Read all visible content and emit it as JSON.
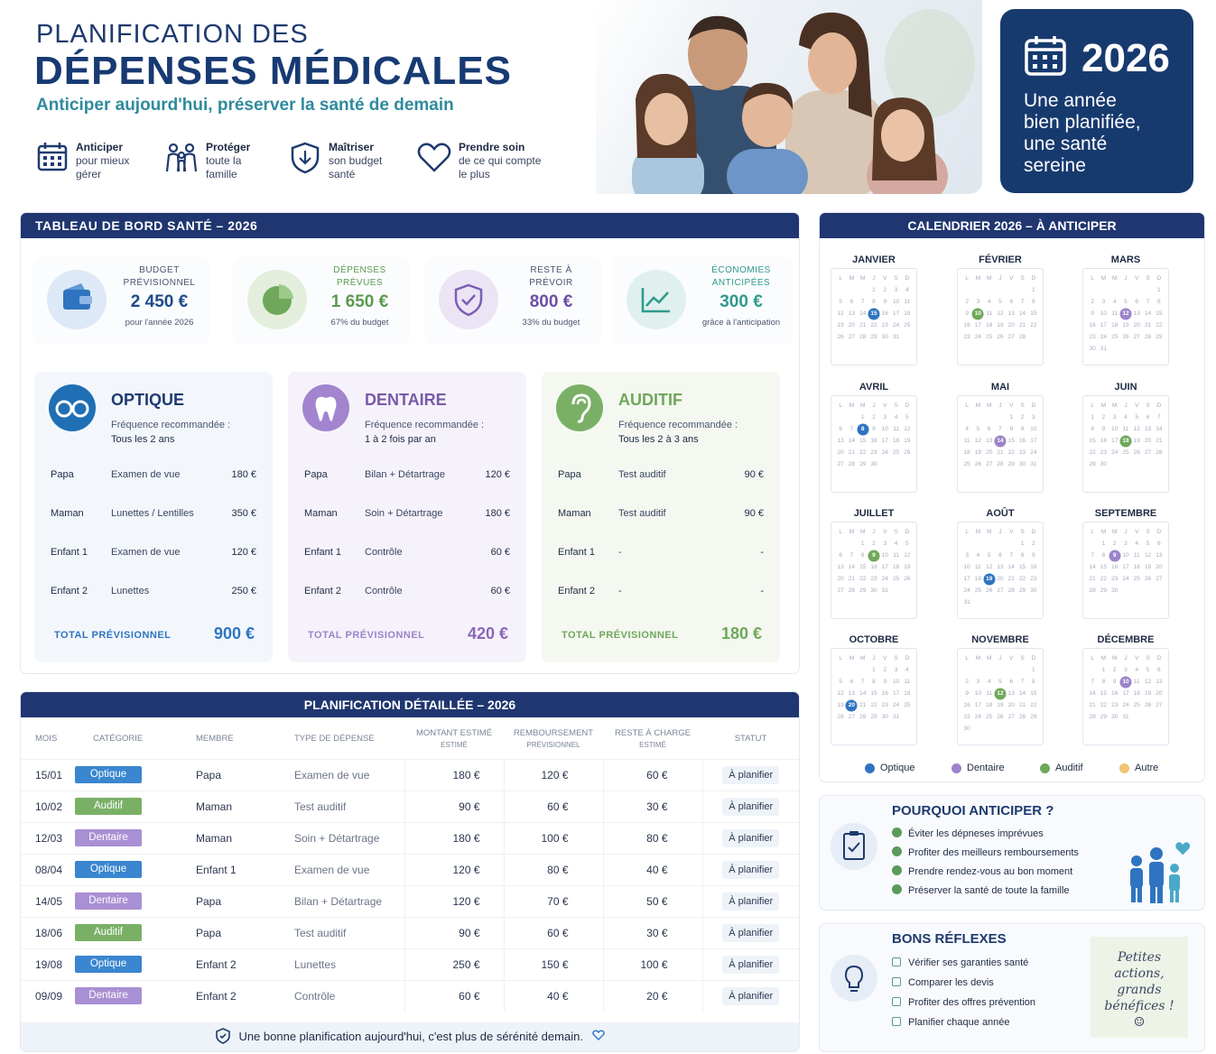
{
  "header": {
    "title_line1": "PLANIFICATION DES",
    "title_line2": "DÉPENSES MÉDICALES",
    "subtitle": "Anticiper aujourd'hui, préserver la santé de demain",
    "features": [
      {
        "title": "Anticiper",
        "text1": "pour mieux",
        "text2": "gérer",
        "icon": "calendar-icon"
      },
      {
        "title": "Protéger",
        "text1": "toute la",
        "text2": "famille",
        "icon": "family-icon"
      },
      {
        "title": "Maîtriser",
        "text1": "son budget",
        "text2": "santé",
        "icon": "shield-icon"
      },
      {
        "title": "Prendre soin",
        "text1": "de ce qui compte",
        "text2": "le plus",
        "icon": "heart-icon"
      }
    ]
  },
  "year_box": {
    "year": "2026",
    "line1": "Une année",
    "line2": "bien planifiée,",
    "line3": "une santé",
    "line4": "sereine"
  },
  "dashboard": {
    "title": "TABLEAU DE BORD SANTÉ – 2026",
    "kpis": [
      {
        "label1": "BUDGET",
        "label2": "PRÉVISIONNEL",
        "value": "2 450 €",
        "note": "pour l'année 2026",
        "color": "#1e4a8c",
        "icon": "wallet-icon"
      },
      {
        "label1": "DÉPENSES",
        "label2": "PRÉVUES",
        "value": "1 650 €",
        "note": "67% du budget",
        "color": "#5d9a4e",
        "icon": "pie-icon"
      },
      {
        "label1": "RESTE À",
        "label2": "PRÉVOIR",
        "value": "800 €",
        "note": "33% du budget",
        "color": "#6a4fa3",
        "icon": "shield-check-icon"
      },
      {
        "label1": "ÉCONOMIES",
        "label2": "ANTICIPÉES",
        "value": "300 €",
        "note": "grâce à l'anticipation",
        "color": "#2f9a8c",
        "icon": "trend-icon"
      }
    ],
    "freq_label": "Fréquence recommandée :",
    "total_label": "TOTAL PRÉVISIONNEL",
    "categories": [
      {
        "title": "OPTIQUE",
        "freq": "Tous les 2 ans",
        "color": "#1f6fb5",
        "total": "900 €",
        "icon": "glasses-icon",
        "rows": [
          {
            "member": "Papa",
            "exam": "Examen de vue",
            "price": "180 €"
          },
          {
            "member": "Maman",
            "exam": "Lunettes / Lentilles",
            "price": "350 €"
          },
          {
            "member": "Enfant 1",
            "exam": "Examen de vue",
            "price": "120 €"
          },
          {
            "member": "Enfant 2",
            "exam": "Lunettes",
            "price": "250 €"
          }
        ]
      },
      {
        "title": "DENTAIRE",
        "freq": "1 à 2 fois par an",
        "color": "#8a67b8",
        "total": "420 €",
        "icon": "tooth-icon",
        "rows": [
          {
            "member": "Papa",
            "exam": "Bilan + Détartrage",
            "price": "120 €"
          },
          {
            "member": "Maman",
            "exam": "Soin + Détartrage",
            "price": "180 €"
          },
          {
            "member": "Enfant 1",
            "exam": "Contrôle",
            "price": "60 €"
          },
          {
            "member": "Enfant 2",
            "exam": "Contrôle",
            "price": "60 €"
          }
        ]
      },
      {
        "title": "AUDITIF",
        "freq": "Tous les 2 à 3 ans",
        "color": "#6fa85a",
        "total": "180 €",
        "icon": "ear-icon",
        "rows": [
          {
            "member": "Papa",
            "exam": "Test auditif",
            "price": "90 €"
          },
          {
            "member": "Maman",
            "exam": "Test auditif",
            "price": "90 €"
          },
          {
            "member": "Enfant 1",
            "exam": "-",
            "price": "-"
          },
          {
            "member": "Enfant 2",
            "exam": "-",
            "price": "-"
          }
        ]
      }
    ]
  },
  "detail": {
    "title": "PLANIFICATION DÉTAILLÉE – 2026",
    "headers": [
      "MOIS",
      "CATÉGORIE",
      "MEMBRE",
      "TYPE DE DÉPENSE",
      "MONTANT ESTIMÉ",
      "REMBOURSEMENT",
      "RESTE À CHARGE",
      "STATUT"
    ],
    "subheaders": [
      "ESTIMÉ",
      "PRÉVISIONNEL",
      "ESTIMÉ"
    ],
    "rows": [
      {
        "date": "15/01",
        "cat": "Optique",
        "member": "Papa",
        "type": "Examen de vue",
        "amount": "180 €",
        "refund": "120 €",
        "rest": "60 €",
        "status": "À planifier"
      },
      {
        "date": "10/02",
        "cat": "Auditif",
        "member": "Maman",
        "type": "Test auditif",
        "amount": "90 €",
        "refund": "60 €",
        "rest": "30 €",
        "status": "À planifier"
      },
      {
        "date": "12/03",
        "cat": "Dentaire",
        "member": "Maman",
        "type": "Soin + Détartrage",
        "amount": "180 €",
        "refund": "100 €",
        "rest": "80 €",
        "status": "À planifier"
      },
      {
        "date": "08/04",
        "cat": "Optique",
        "member": "Enfant 1",
        "type": "Examen de vue",
        "amount": "120 €",
        "refund": "80 €",
        "rest": "40 €",
        "status": "À planifier"
      },
      {
        "date": "14/05",
        "cat": "Dentaire",
        "member": "Papa",
        "type": "Bilan + Détartrage",
        "amount": "120 €",
        "refund": "70 €",
        "rest": "50 €",
        "status": "À planifier"
      },
      {
        "date": "18/06",
        "cat": "Auditif",
        "member": "Papa",
        "type": "Test auditif",
        "amount": "90 €",
        "refund": "60 €",
        "rest": "30 €",
        "status": "À planifier"
      },
      {
        "date": "19/08",
        "cat": "Optique",
        "member": "Enfant 2",
        "type": "Lunettes",
        "amount": "250 €",
        "refund": "150 €",
        "rest": "100 €",
        "status": "À planifier"
      },
      {
        "date": "09/09",
        "cat": "Dentaire",
        "member": "Enfant 2",
        "type": "Contrôle",
        "amount": "60 €",
        "refund": "40 €",
        "rest": "20 €",
        "status": "À planifier"
      }
    ],
    "footer": "Une bonne planification aujourd'hui, c'est plus de sérénité demain."
  },
  "calendar": {
    "title": "CALENDRIER 2026 – À ANTICIPER",
    "weekdays": [
      "L",
      "M",
      "M",
      "J",
      "V",
      "S",
      "D"
    ],
    "months": [
      "JANVIER",
      "FÉVRIER",
      "MARS",
      "AVRIL",
      "MAI",
      "JUIN",
      "JUILLET",
      "AOÛT",
      "SEPTEMBRE",
      "OCTOBRE",
      "NOVEMBRE",
      "DÉCEMBRE"
    ],
    "legend": [
      {
        "label": "Optique",
        "color": "#2f74c0"
      },
      {
        "label": "Dentaire",
        "color": "#9b84c9"
      },
      {
        "label": "Auditif",
        "color": "#6fa85a"
      },
      {
        "label": "Autre",
        "color": "#f2c374"
      }
    ]
  },
  "why": {
    "title": "POURQUOI ANTICIPER ?",
    "items": [
      "Éviter les dépneses imprévues",
      "Profiter des meilleurs remboursements",
      "Prendre rendez-vous au bon moment",
      "Préserver la santé de toute la famille"
    ]
  },
  "reflexes": {
    "title": "BONS RÉFLEXES",
    "items": [
      "Vérifier ses garanties santé",
      "Comparer les devis",
      "Profiter des offres prévention",
      "Planifier chaque année"
    ],
    "note_line1": "Petites",
    "note_line2": "actions,",
    "note_line3": "grands",
    "note_line4": "bénéfices !"
  }
}
